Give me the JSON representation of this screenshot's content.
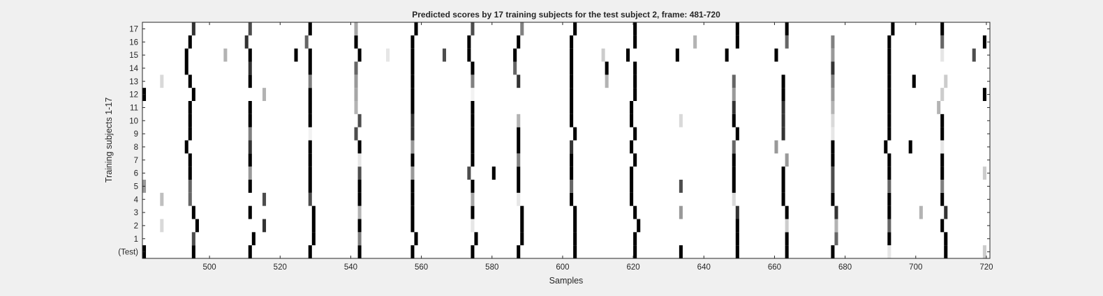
{
  "chart_data": {
    "type": "heatmap",
    "title": "Predicted scores by 17 training subjects for the test subject 2, frame: 481-720",
    "xlabel": "Samples",
    "ylabel": "Training subjects 1-17",
    "xlim": [
      481,
      720
    ],
    "x_ticks": [
      "500",
      "520",
      "540",
      "560",
      "580",
      "600",
      "620",
      "640",
      "660",
      "680",
      "700",
      "720"
    ],
    "row_labels": [
      "(Test)",
      "1",
      "2",
      "3",
      "4",
      "5",
      "6",
      "7",
      "8",
      "9",
      "10",
      "11",
      "12",
      "13",
      "14",
      "15",
      "16",
      "17"
    ],
    "colormap": "gray (white = 0, black = 1)",
    "grid": false,
    "rows": [
      {
        "label": "(Test)",
        "marks": [
          [
            481,
            1
          ],
          [
            495,
            1
          ],
          [
            511,
            1
          ],
          [
            528,
            1
          ],
          [
            542,
            1
          ],
          [
            557,
            1
          ],
          [
            574,
            1
          ],
          [
            587,
            1
          ],
          [
            603,
            1
          ],
          [
            620,
            1
          ],
          [
            633,
            1
          ],
          [
            649,
            1
          ],
          [
            663,
            1
          ],
          [
            676,
            1
          ],
          [
            692,
            0.1
          ],
          [
            708,
            1
          ],
          [
            719,
            0.2
          ]
        ]
      },
      {
        "label": "1",
        "marks": [
          [
            495,
            0.7
          ],
          [
            512,
            1
          ],
          [
            529,
            1
          ],
          [
            542,
            0.5
          ],
          [
            558,
            1
          ],
          [
            575,
            1
          ],
          [
            588,
            1
          ],
          [
            603,
            1
          ],
          [
            620,
            1
          ],
          [
            649,
            1
          ],
          [
            663,
            1
          ],
          [
            677,
            0.6
          ],
          [
            692,
            1
          ],
          [
            708,
            1
          ]
        ]
      },
      {
        "label": "2",
        "marks": [
          [
            486,
            0.15
          ],
          [
            496,
            1
          ],
          [
            515,
            0.8
          ],
          [
            529,
            1
          ],
          [
            542,
            1
          ],
          [
            557,
            1
          ],
          [
            574,
            0.1
          ],
          [
            588,
            1
          ],
          [
            603,
            1
          ],
          [
            621,
            1
          ],
          [
            649,
            1
          ],
          [
            663,
            0.2
          ],
          [
            677,
            0.3
          ],
          [
            692,
            0.6
          ],
          [
            707,
            1
          ]
        ]
      },
      {
        "label": "3",
        "marks": [
          [
            495,
            1
          ],
          [
            511,
            1
          ],
          [
            529,
            1
          ],
          [
            542,
            0.3
          ],
          [
            557,
            1
          ],
          [
            574,
            1
          ],
          [
            588,
            1
          ],
          [
            603,
            1
          ],
          [
            620,
            1
          ],
          [
            633,
            0.4
          ],
          [
            649,
            0.8
          ],
          [
            663,
            1
          ],
          [
            677,
            0.8
          ],
          [
            692,
            1
          ],
          [
            701,
            0.3
          ],
          [
            708,
            0.8
          ]
        ]
      },
      {
        "label": "4",
        "marks": [
          [
            486,
            0.25
          ],
          [
            494,
            0.6
          ],
          [
            515,
            0.7
          ],
          [
            528,
            0.7
          ],
          [
            542,
            1
          ],
          [
            557,
            1
          ],
          [
            574,
            0.35
          ],
          [
            587,
            0.1
          ],
          [
            602,
            1
          ],
          [
            619,
            1
          ],
          [
            648,
            0.15
          ],
          [
            662,
            1
          ],
          [
            676,
            1
          ],
          [
            692,
            1
          ],
          [
            707,
            1
          ]
        ]
      },
      {
        "label": "5",
        "marks": [
          [
            481,
            0.4
          ],
          [
            494,
            0.6
          ],
          [
            511,
            1
          ],
          [
            528,
            1
          ],
          [
            542,
            1
          ],
          [
            557,
            1
          ],
          [
            574,
            1
          ],
          [
            587,
            1
          ],
          [
            602,
            0.6
          ],
          [
            619,
            1
          ],
          [
            633,
            0.7
          ],
          [
            648,
            1
          ],
          [
            662,
            1
          ],
          [
            676,
            0.7
          ],
          [
            692,
            0.6
          ],
          [
            707,
            0.5
          ]
        ]
      },
      {
        "label": "6",
        "marks": [
          [
            494,
            1
          ],
          [
            511,
            0.4
          ],
          [
            528,
            1
          ],
          [
            542,
            0.7
          ],
          [
            557,
            0.4
          ],
          [
            573,
            0.7
          ],
          [
            580,
            1
          ],
          [
            587,
            1
          ],
          [
            602,
            1
          ],
          [
            619,
            1
          ],
          [
            648,
            1
          ],
          [
            662,
            1
          ],
          [
            676,
            0.7
          ],
          [
            692,
            1
          ],
          [
            707,
            1
          ],
          [
            719,
            0.2
          ]
        ]
      },
      {
        "label": "7",
        "marks": [
          [
            494,
            1
          ],
          [
            511,
            1
          ],
          [
            528,
            1
          ],
          [
            542,
            0.1
          ],
          [
            557,
            1
          ],
          [
            574,
            1
          ],
          [
            587,
            0.5
          ],
          [
            602,
            1
          ],
          [
            620,
            1
          ],
          [
            648,
            1
          ],
          [
            663,
            0.4
          ],
          [
            676,
            1
          ],
          [
            692,
            1
          ],
          [
            707,
            1
          ]
        ]
      },
      {
        "label": "8",
        "marks": [
          [
            493,
            1
          ],
          [
            511,
            0.8
          ],
          [
            528,
            1
          ],
          [
            542,
            1
          ],
          [
            557,
            0.4
          ],
          [
            574,
            1
          ],
          [
            587,
            1
          ],
          [
            602,
            0.8
          ],
          [
            619,
            1
          ],
          [
            648,
            0.6
          ],
          [
            660,
            0.4
          ],
          [
            676,
            1
          ],
          [
            691,
            1
          ],
          [
            698,
            1
          ],
          [
            707,
            0.1
          ]
        ]
      },
      {
        "label": "9",
        "marks": [
          [
            494,
            1
          ],
          [
            511,
            0.5
          ],
          [
            528,
            0.05
          ],
          [
            541,
            0.7
          ],
          [
            557,
            0.8
          ],
          [
            574,
            1
          ],
          [
            587,
            1
          ],
          [
            603,
            1
          ],
          [
            620,
            1
          ],
          [
            649,
            1
          ],
          [
            662,
            0.8
          ],
          [
            676,
            0.1
          ],
          [
            692,
            1
          ],
          [
            707,
            1
          ]
        ]
      },
      {
        "label": "10",
        "marks": [
          [
            494,
            1
          ],
          [
            511,
            1
          ],
          [
            528,
            1
          ],
          [
            542,
            0.7
          ],
          [
            557,
            0.8
          ],
          [
            574,
            1
          ],
          [
            587,
            0.3
          ],
          [
            602,
            1
          ],
          [
            619,
            1
          ],
          [
            633,
            0.15
          ],
          [
            648,
            1
          ],
          [
            662,
            0.8
          ],
          [
            676,
            0.15
          ],
          [
            692,
            1
          ],
          [
            707,
            1
          ]
        ]
      },
      {
        "label": "11",
        "marks": [
          [
            494,
            1
          ],
          [
            511,
            1
          ],
          [
            528,
            1
          ],
          [
            541,
            0.3
          ],
          [
            557,
            1
          ],
          [
            574,
            1
          ],
          [
            602,
            1
          ],
          [
            619,
            1
          ],
          [
            648,
            0.8
          ],
          [
            662,
            0.8
          ],
          [
            676,
            0.3
          ],
          [
            692,
            1
          ],
          [
            706,
            0.3
          ]
        ]
      },
      {
        "label": "12",
        "marks": [
          [
            481,
            1
          ],
          [
            495,
            1
          ],
          [
            515,
            0.3
          ],
          [
            528,
            1
          ],
          [
            541,
            0.35
          ],
          [
            557,
            1
          ],
          [
            574,
            0.05
          ],
          [
            602,
            1
          ],
          [
            620,
            1
          ],
          [
            648,
            0.4
          ],
          [
            662,
            1
          ],
          [
            676,
            0.4
          ],
          [
            692,
            1
          ],
          [
            707,
            0.2
          ],
          [
            719,
            1
          ]
        ]
      },
      {
        "label": "13",
        "marks": [
          [
            486,
            0.15
          ],
          [
            494,
            1
          ],
          [
            511,
            1
          ],
          [
            528,
            0.5
          ],
          [
            541,
            0.4
          ],
          [
            557,
            1
          ],
          [
            574,
            0.5
          ],
          [
            587,
            0.8
          ],
          [
            602,
            1
          ],
          [
            612,
            0.3
          ],
          [
            620,
            1
          ],
          [
            648,
            0.6
          ],
          [
            662,
            1
          ],
          [
            676,
            0.5
          ],
          [
            692,
            1
          ],
          [
            699,
            1
          ],
          [
            708,
            0.2
          ]
        ]
      },
      {
        "label": "14",
        "marks": [
          [
            493,
            1
          ],
          [
            511,
            0.8
          ],
          [
            528,
            1
          ],
          [
            541,
            0.6
          ],
          [
            557,
            1
          ],
          [
            574,
            1
          ],
          [
            586,
            0.6
          ],
          [
            602,
            1
          ],
          [
            612,
            1
          ],
          [
            620,
            1
          ],
          [
            676,
            0.8
          ],
          [
            692,
            1
          ]
        ]
      },
      {
        "label": "15",
        "marks": [
          [
            493,
            1
          ],
          [
            504,
            0.3
          ],
          [
            511,
            1
          ],
          [
            524,
            1
          ],
          [
            528,
            1
          ],
          [
            542,
            1
          ],
          [
            550,
            0.1
          ],
          [
            557,
            1
          ],
          [
            566,
            0.7
          ],
          [
            573,
            1
          ],
          [
            586,
            1
          ],
          [
            602,
            1
          ],
          [
            611,
            0.2
          ],
          [
            618,
            1
          ],
          [
            632,
            1
          ],
          [
            646,
            1
          ],
          [
            660,
            1
          ],
          [
            676,
            0.4
          ],
          [
            692,
            1
          ],
          [
            707,
            0.1
          ],
          [
            716,
            0.7
          ]
        ]
      },
      {
        "label": "16",
        "marks": [
          [
            494,
            1
          ],
          [
            510,
            0.8
          ],
          [
            527,
            0.6
          ],
          [
            541,
            1
          ],
          [
            557,
            1
          ],
          [
            573,
            1
          ],
          [
            587,
            1
          ],
          [
            602,
            1
          ],
          [
            620,
            1
          ],
          [
            637,
            0.3
          ],
          [
            649,
            1
          ],
          [
            663,
            0.6
          ],
          [
            676,
            0.5
          ],
          [
            692,
            1
          ],
          [
            707,
            0.6
          ],
          [
            719,
            1
          ]
        ]
      },
      {
        "label": "17",
        "marks": [
          [
            495,
            0.8
          ],
          [
            511,
            0.7
          ],
          [
            528,
            1
          ],
          [
            541,
            0.35
          ],
          [
            558,
            1
          ],
          [
            574,
            0.7
          ],
          [
            588,
            0.5
          ],
          [
            603,
            1
          ],
          [
            620,
            1
          ],
          [
            649,
            1
          ],
          [
            663,
            1
          ],
          [
            693,
            1
          ],
          [
            707,
            1
          ]
        ]
      }
    ]
  }
}
